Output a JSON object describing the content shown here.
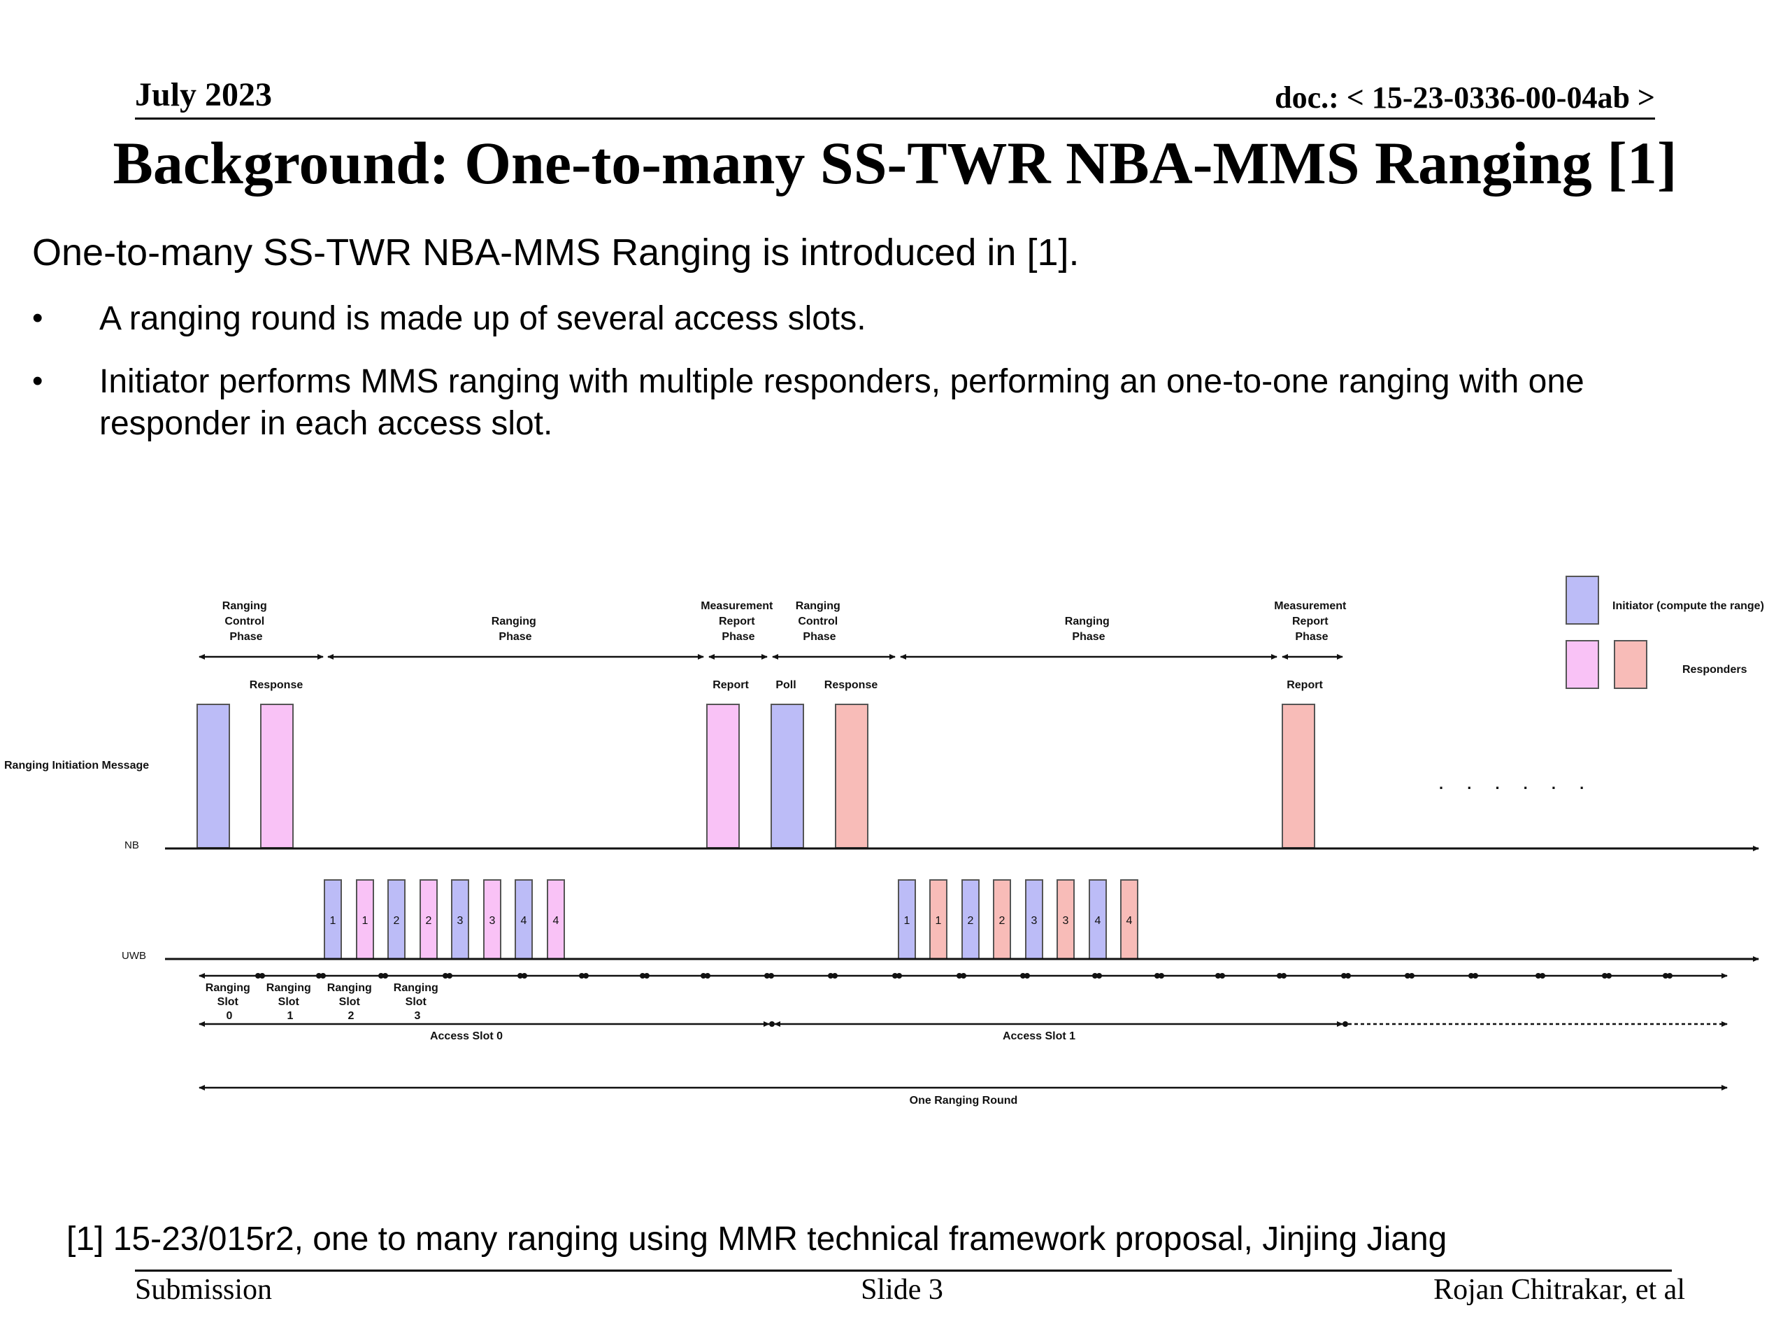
{
  "header": {
    "date": "July 2023",
    "doc": "doc.: < 15-23-0336-00-04ab >"
  },
  "title": "Background: One-to-many SS-TWR NBA-MMS Ranging [1]",
  "intro": "One-to-many SS-TWR NBA-MMS Ranging is introduced in [1].",
  "bullets": [
    "A ranging round is made up of several access slots.",
    "Initiator performs MMS ranging with multiple responders, performing an one-to-one ranging with one responder in each access slot."
  ],
  "diagram": {
    "phases": {
      "rcp1": [
        "Ranging",
        "Control",
        "Phase"
      ],
      "rp1": [
        "Ranging",
        "Phase"
      ],
      "mrp1": [
        "Measurement",
        "Report",
        "Phase"
      ],
      "rcp2": [
        "Ranging",
        "Control",
        "Phase"
      ],
      "rp2": [
        "Ranging",
        "Phase"
      ],
      "mrp2": [
        "Measurement",
        "Report",
        "Phase"
      ]
    },
    "messages": {
      "response1": "Response",
      "report1": "Report",
      "poll": "Poll",
      "response2": "Response",
      "report2": "Report"
    },
    "ranging_init": "Ranging Initiation Message",
    "nb_label": "NB",
    "uwb_label": "UWB",
    "slot_numbers": [
      "1",
      "1",
      "2",
      "2",
      "3",
      "3",
      "4",
      "4"
    ],
    "ranging_slots": [
      [
        "Ranging",
        "Slot",
        "0"
      ],
      [
        "Ranging",
        "Slot",
        "1"
      ],
      [
        "Ranging",
        "Slot",
        "2"
      ],
      [
        "Ranging",
        "Slot",
        "3"
      ]
    ],
    "access_slot0": "Access Slot 0",
    "access_slot1": "Access Slot 1",
    "round": "One Ranging Round",
    "ellipsis": ". . . . . .",
    "legend": {
      "initiator": "Initiator (compute the range)",
      "responders": "Responders"
    },
    "colors": {
      "initiator": "#bcbcf7",
      "responder_pink": "#f9c2f6",
      "responder_salmon": "#f8bcb8",
      "outline": "#555555"
    }
  },
  "footnote": "[1] 15-23/015r2, one to many ranging using MMR technical framework proposal, Jinjing Jiang",
  "footer": {
    "left": "Submission",
    "center": "Slide 3",
    "right": "Rojan Chitrakar, et al"
  }
}
